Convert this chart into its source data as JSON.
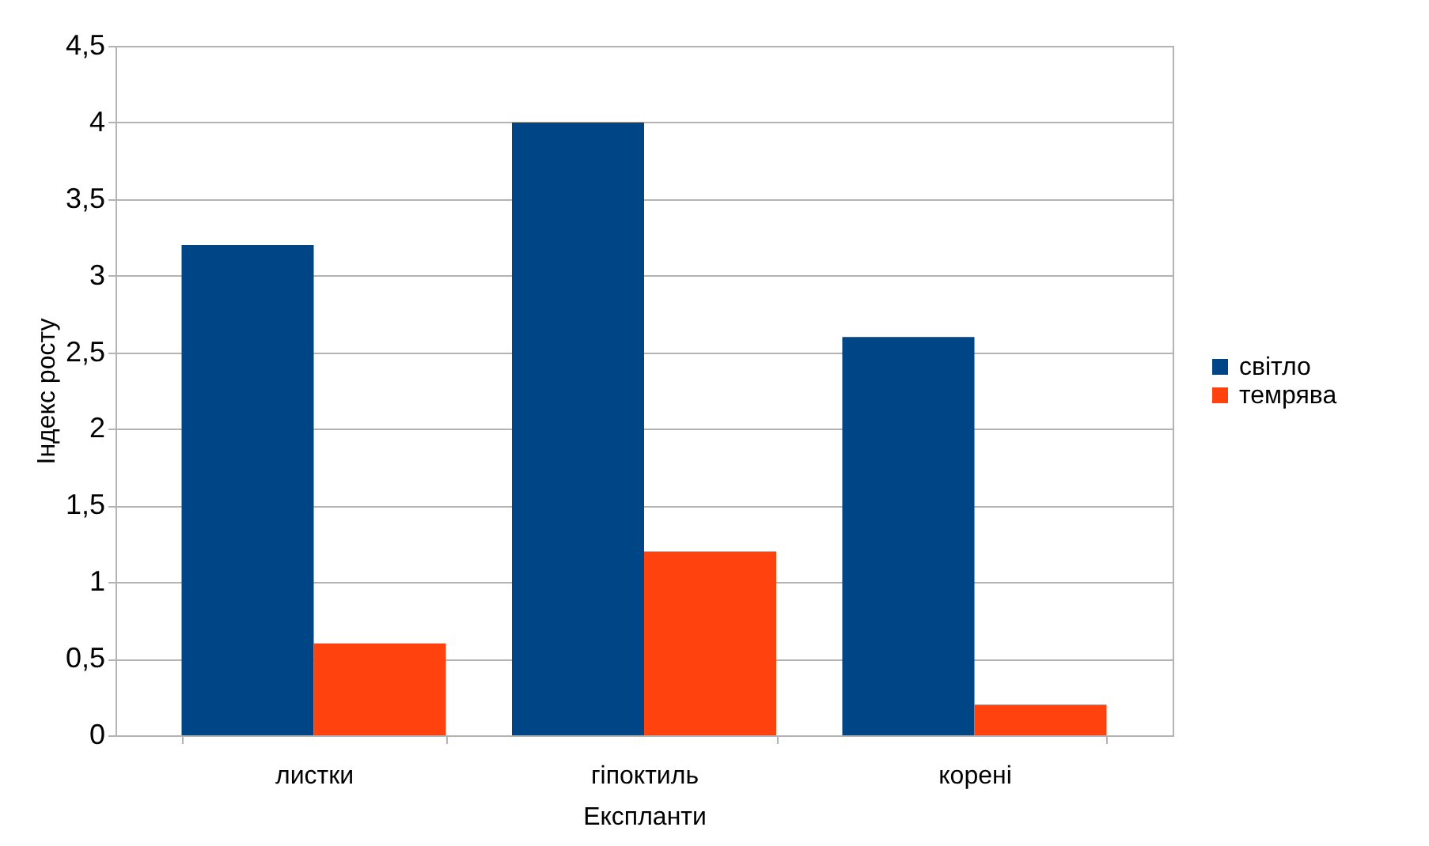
{
  "chart_data": {
    "type": "bar",
    "xlabel": "Експланти",
    "ylabel": "Індекс росту",
    "categories": [
      "листки",
      "гіпоктиль",
      "корені"
    ],
    "series": [
      {
        "name": "світло",
        "color": "#004586",
        "values": [
          3.2,
          4.0,
          2.6
        ]
      },
      {
        "name": "темрява",
        "color": "#ff420e",
        "values": [
          0.6,
          1.2,
          0.2
        ]
      }
    ],
    "ylim": [
      0,
      4.5
    ],
    "yticks": [
      0,
      {
        "value": 0.5,
        "label": "0,5"
      },
      1,
      {
        "value": 1.5,
        "label": "1,5"
      },
      2,
      {
        "value": 2.5,
        "label": "2,5"
      },
      3,
      {
        "value": 3.5,
        "label": "3,5"
      },
      4,
      {
        "value": 4.5,
        "label": "4,5"
      }
    ],
    "grid": "y",
    "legend": "right"
  }
}
